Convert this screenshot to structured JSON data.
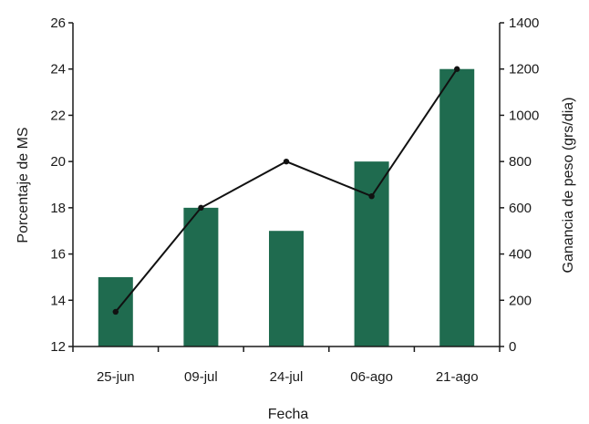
{
  "chart_data": {
    "type": "bar",
    "title": "",
    "xlabel": "Fecha",
    "ylabel": "Porcentaje de MS",
    "y2label": "Ganancia de peso (grs/dia)",
    "categories": [
      "25-jun",
      "09-jul",
      "24-jul",
      "06-ago",
      "21-ago"
    ],
    "ylim": [
      12,
      26
    ],
    "yticks": [
      12,
      14,
      16,
      18,
      20,
      22,
      24,
      26
    ],
    "y2lim": [
      0,
      1400
    ],
    "y2ticks": [
      0,
      200,
      400,
      600,
      800,
      1000,
      1200,
      1400
    ],
    "grid": false,
    "legend": "none",
    "series": [
      {
        "type": "bar",
        "axis": "left",
        "color": "#1f6b4f",
        "values": [
          15,
          18,
          17,
          20,
          24
        ]
      },
      {
        "type": "line",
        "axis": "right",
        "color": "#111111",
        "values": [
          150,
          600,
          800,
          650,
          1200
        ]
      }
    ]
  }
}
